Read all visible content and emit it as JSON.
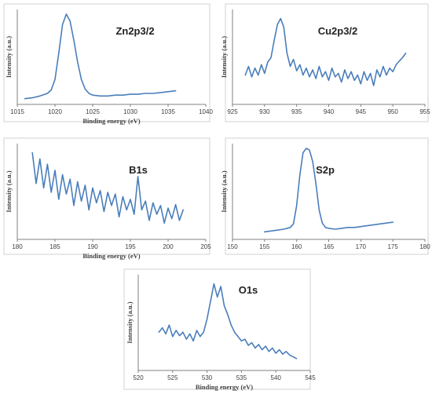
{
  "chart_data": [
    {
      "type": "line",
      "title": "Zn2p3/2",
      "xlabel": "Binding energy (eV)",
      "ylabel": "Intensity (a.u.)",
      "xlim": [
        1015,
        1040
      ],
      "xticks": [
        1015,
        1020,
        1025,
        1030,
        1035,
        1040
      ],
      "ylim": [
        0,
        100
      ],
      "series": [
        {
          "x": [
            1016,
            1017,
            1018,
            1019,
            1019.5,
            1020,
            1020.5,
            1021,
            1021.5,
            1022,
            1022.5,
            1023,
            1023.5,
            1024,
            1024.5,
            1025,
            1026,
            1027,
            1028,
            1029,
            1030,
            1031,
            1032,
            1033,
            1034,
            1035,
            1036
          ],
          "y": [
            3,
            4,
            6,
            9,
            13,
            25,
            55,
            88,
            100,
            92,
            70,
            45,
            25,
            14,
            9,
            7,
            6,
            6,
            7,
            7,
            8,
            8,
            9,
            9,
            10,
            11,
            12
          ]
        }
      ]
    },
    {
      "type": "line",
      "title": "Cu2p3/2",
      "xlabel": "",
      "ylabel": "Intensity (a.u.)",
      "xlim": [
        925,
        955
      ],
      "xticks": [
        925,
        930,
        935,
        940,
        945,
        950,
        955
      ],
      "ylim": [
        0,
        100
      ],
      "series": [
        {
          "x": [
            927,
            927.5,
            928,
            928.5,
            929,
            929.5,
            930,
            930.5,
            931,
            931.5,
            932,
            932.5,
            933,
            933.5,
            934,
            934.5,
            935,
            935.5,
            936,
            936.5,
            937,
            937.5,
            938,
            938.5,
            939,
            939.5,
            940,
            940.5,
            941,
            941.5,
            942,
            942.5,
            943,
            943.5,
            944,
            944.5,
            945,
            945.5,
            946,
            946.5,
            947,
            947.5,
            948,
            948.5,
            949,
            949.5,
            950,
            950.5,
            951,
            951.5,
            952
          ],
          "y": [
            30,
            40,
            28,
            38,
            30,
            42,
            32,
            45,
            50,
            70,
            88,
            95,
            85,
            55,
            40,
            48,
            35,
            42,
            30,
            38,
            28,
            36,
            26,
            40,
            28,
            34,
            24,
            38,
            28,
            32,
            22,
            36,
            26,
            34,
            24,
            30,
            20,
            34,
            24,
            32,
            18,
            36,
            28,
            40,
            30,
            38,
            34,
            42,
            46,
            50,
            55
          ]
        }
      ]
    },
    {
      "type": "line",
      "title": "B1s",
      "xlabel": "Binding energy (eV)",
      "ylabel": "Intensity (a.u.)",
      "xlim": [
        180,
        205
      ],
      "xticks": [
        180,
        185,
        190,
        195,
        200,
        205
      ],
      "ylim": [
        0,
        100
      ],
      "series": [
        {
          "x": [
            182,
            182.5,
            183,
            183.5,
            184,
            184.5,
            185,
            185.5,
            186,
            186.5,
            187,
            187.5,
            188,
            188.5,
            189,
            189.5,
            190,
            190.5,
            191,
            191.5,
            192,
            192.5,
            193,
            193.5,
            194,
            194.5,
            195,
            195.5,
            196,
            196.5,
            197,
            197.5,
            198,
            198.5,
            199,
            199.5,
            200,
            200.5,
            201,
            201.5,
            202
          ],
          "y": [
            95,
            60,
            88,
            55,
            82,
            50,
            75,
            42,
            70,
            48,
            65,
            35,
            62,
            40,
            58,
            30,
            55,
            38,
            52,
            28,
            50,
            35,
            48,
            22,
            45,
            30,
            42,
            25,
            68,
            30,
            40,
            18,
            38,
            25,
            35,
            15,
            32,
            20,
            36,
            18,
            30
          ]
        }
      ]
    },
    {
      "type": "line",
      "title": "S2p",
      "xlabel": "",
      "ylabel": "Intensity (a.u.)",
      "xlim": [
        150,
        180
      ],
      "xticks": [
        150,
        155,
        160,
        165,
        170,
        175,
        180
      ],
      "ylim": [
        0,
        100
      ],
      "series": [
        {
          "x": [
            155,
            156,
            157,
            158,
            159,
            159.5,
            160,
            160.5,
            161,
            161.5,
            162,
            162.5,
            163,
            163.5,
            164,
            164.5,
            165,
            166,
            167,
            168,
            169,
            170,
            171,
            172,
            173,
            174,
            175
          ],
          "y": [
            5,
            6,
            7,
            8,
            10,
            14,
            35,
            70,
            95,
            100,
            98,
            85,
            60,
            30,
            15,
            10,
            9,
            8,
            9,
            10,
            10,
            11,
            12,
            13,
            14,
            15,
            16
          ]
        }
      ]
    },
    {
      "type": "line",
      "title": "O1s",
      "xlabel": "Binding energy (eV)",
      "ylabel": "Intensity (a.u.)",
      "xlim": [
        520,
        545
      ],
      "xticks": [
        520,
        525,
        530,
        535,
        540,
        545
      ],
      "ylim": [
        0,
        100
      ],
      "series": [
        {
          "x": [
            523,
            523.5,
            524,
            524.5,
            525,
            525.5,
            526,
            526.5,
            527,
            527.5,
            528,
            528.5,
            529,
            529.5,
            530,
            530.5,
            531,
            531.5,
            532,
            532.5,
            533,
            533.5,
            534,
            534.5,
            535,
            535.5,
            536,
            536.5,
            537,
            537.5,
            538,
            538.5,
            539,
            539.5,
            540,
            540.5,
            541,
            541.5,
            542,
            542.5,
            543
          ],
          "y": [
            40,
            45,
            38,
            48,
            35,
            42,
            36,
            40,
            32,
            38,
            30,
            42,
            35,
            40,
            55,
            75,
            95,
            80,
            92,
            70,
            60,
            48,
            40,
            35,
            30,
            32,
            25,
            28,
            22,
            26,
            20,
            24,
            18,
            22,
            16,
            20,
            15,
            18,
            14,
            12,
            10
          ]
        }
      ]
    }
  ]
}
